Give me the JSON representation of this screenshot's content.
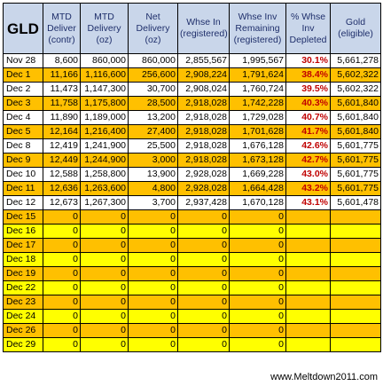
{
  "table": {
    "corner_label": "GLD",
    "headers": [
      [
        "MTD",
        "Deliver",
        "(contr)"
      ],
      [
        "MTD",
        "Delivery",
        "(oz)"
      ],
      [
        "Net",
        "Delivery",
        "(oz)"
      ],
      [
        "Whse In",
        "(registered)"
      ],
      [
        "Whse Inv",
        "Remaining",
        "(registered)"
      ],
      [
        "% Whse",
        "Inv",
        "Depleted"
      ],
      [
        "Gold",
        "(eligible)"
      ]
    ],
    "rows": [
      {
        "date": "Nov 28",
        "color": "white",
        "cells": [
          "8,600",
          "860,000",
          "860,000",
          "2,855,567",
          "1,995,567",
          "30.1%",
          "5,661,278"
        ]
      },
      {
        "date": "Dec 1",
        "color": "orange",
        "cells": [
          "11,166",
          "1,116,600",
          "256,600",
          "2,908,224",
          "1,791,624",
          "38.4%",
          "5,602,322"
        ]
      },
      {
        "date": "Dec 2",
        "color": "white",
        "cells": [
          "11,473",
          "1,147,300",
          "30,700",
          "2,908,024",
          "1,760,724",
          "39.5%",
          "5,602,322"
        ]
      },
      {
        "date": "Dec 3",
        "color": "orange",
        "cells": [
          "11,758",
          "1,175,800",
          "28,500",
          "2,918,028",
          "1,742,228",
          "40.3%",
          "5,601,840"
        ]
      },
      {
        "date": "Dec 4",
        "color": "white",
        "cells": [
          "11,890",
          "1,189,000",
          "13,200",
          "2,918,028",
          "1,729,028",
          "40.7%",
          "5,601,840"
        ]
      },
      {
        "date": "Dec 5",
        "color": "orange",
        "cells": [
          "12,164",
          "1,216,400",
          "27,400",
          "2,918,028",
          "1,701,628",
          "41.7%",
          "5,601,840"
        ]
      },
      {
        "date": "Dec 8",
        "color": "white",
        "cells": [
          "12,419",
          "1,241,900",
          "25,500",
          "2,918,028",
          "1,676,128",
          "42.6%",
          "5,601,775"
        ]
      },
      {
        "date": "Dec 9",
        "color": "orange",
        "cells": [
          "12,449",
          "1,244,900",
          "3,000",
          "2,918,028",
          "1,673,128",
          "42.7%",
          "5,601,775"
        ]
      },
      {
        "date": "Dec 10",
        "color": "white",
        "cells": [
          "12,588",
          "1,258,800",
          "13,900",
          "2,928,028",
          "1,669,228",
          "43.0%",
          "5,601,775"
        ]
      },
      {
        "date": "Dec 11",
        "color": "orange",
        "cells": [
          "12,636",
          "1,263,600",
          "4,800",
          "2,928,028",
          "1,664,428",
          "43.2%",
          "5,601,775"
        ]
      },
      {
        "date": "Dec 12",
        "color": "white",
        "cells": [
          "12,673",
          "1,267,300",
          "3,700",
          "2,937,428",
          "1,670,128",
          "43.1%",
          "5,601,478"
        ]
      },
      {
        "date": "Dec 15",
        "color": "orange",
        "cells": [
          "0",
          "0",
          "0",
          "0",
          "0",
          "",
          ""
        ]
      },
      {
        "date": "Dec 16",
        "color": "yellow",
        "cells": [
          "0",
          "0",
          "0",
          "0",
          "0",
          "",
          ""
        ]
      },
      {
        "date": "Dec 17",
        "color": "orange",
        "cells": [
          "0",
          "0",
          "0",
          "0",
          "0",
          "",
          ""
        ]
      },
      {
        "date": "Dec 18",
        "color": "yellow",
        "cells": [
          "0",
          "0",
          "0",
          "0",
          "0",
          "",
          ""
        ]
      },
      {
        "date": "Dec 19",
        "color": "orange",
        "cells": [
          "0",
          "0",
          "0",
          "0",
          "0",
          "",
          ""
        ]
      },
      {
        "date": "Dec 22",
        "color": "yellow",
        "cells": [
          "0",
          "0",
          "0",
          "0",
          "0",
          "",
          ""
        ]
      },
      {
        "date": "Dec 23",
        "color": "orange",
        "cells": [
          "0",
          "0",
          "0",
          "0",
          "0",
          "",
          ""
        ]
      },
      {
        "date": "Dec 24",
        "color": "yellow",
        "cells": [
          "0",
          "0",
          "0",
          "0",
          "0",
          "",
          ""
        ]
      },
      {
        "date": "Dec 26",
        "color": "orange",
        "cells": [
          "0",
          "0",
          "0",
          "0",
          "0",
          "",
          ""
        ]
      },
      {
        "date": "Dec 29",
        "color": "yellow",
        "cells": [
          "0",
          "0",
          "0",
          "0",
          "0",
          "",
          ""
        ]
      }
    ]
  },
  "footer": {
    "watermark": "www.Meltdown2011.com"
  },
  "colors": {
    "header_bg": "#c9d6ea",
    "header_text": "#1f2f6b",
    "row_white": "#ffffff",
    "row_orange": "#ffc000",
    "row_yellow": "#ffff00",
    "percent_text": "#c00000"
  }
}
